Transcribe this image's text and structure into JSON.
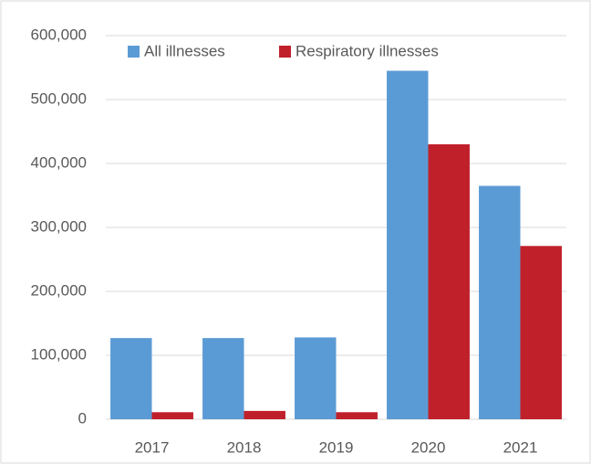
{
  "chart_data": {
    "type": "bar",
    "categories": [
      "2017",
      "2018",
      "2019",
      "2020",
      "2021"
    ],
    "series": [
      {
        "name": "All illnesses",
        "color": "#5b9bd5",
        "values": [
          127000,
          127000,
          128000,
          545000,
          365000
        ]
      },
      {
        "name": "Respiratory illnesses",
        "color": "#c0202a",
        "values": [
          11000,
          13000,
          11000,
          430000,
          271000
        ]
      }
    ],
    "ylim": [
      0,
      600000
    ],
    "yticks": [
      0,
      {
        "value": 100000,
        "label": "100,000"
      },
      {
        "value": 200000,
        "label": "200,000"
      },
      {
        "value": 300000,
        "label": "300,000"
      },
      {
        "value": 400000,
        "label": "400,000"
      },
      {
        "value": 500000,
        "label": "500,000"
      },
      {
        "value": 600000,
        "label": "600,000"
      }
    ],
    "grid": true,
    "legend": "top"
  }
}
